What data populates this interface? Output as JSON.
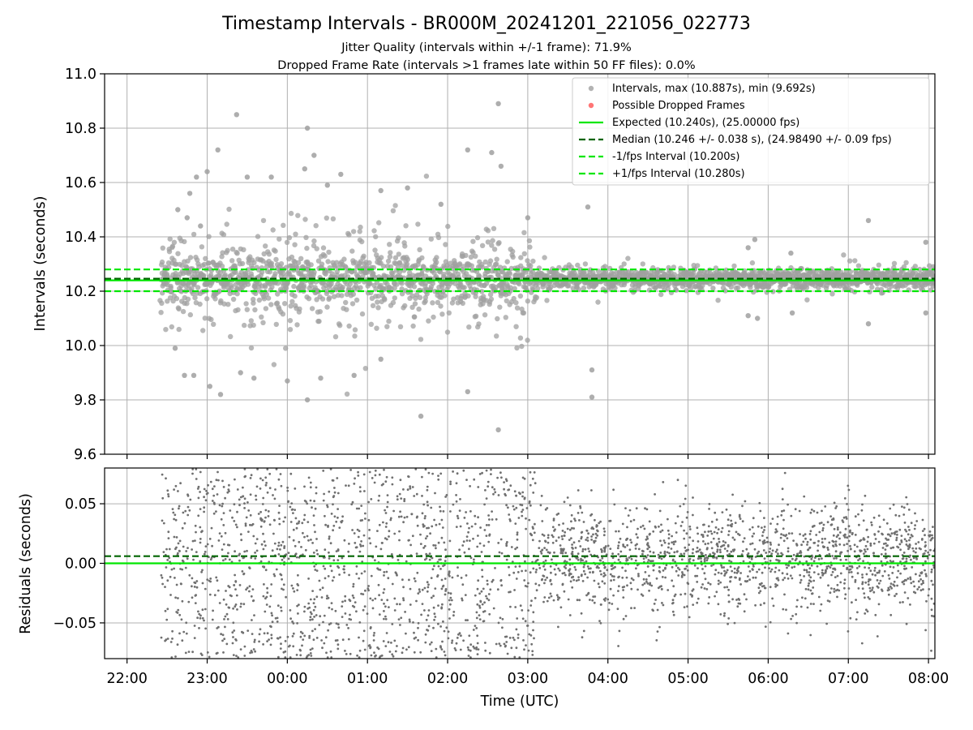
{
  "chart_data": [
    {
      "type": "scatter",
      "title": "Timestamp Intervals - BR000M_20241201_221056_022773",
      "subtitle_lines": [
        "Jitter Quality (intervals within +/-1 frame): 71.9%",
        "Dropped Frame Rate (intervals >1 frames late within 50 FF files): 0.0%"
      ],
      "xlabel": "",
      "ylabel": "Intervals (seconds)",
      "ylim": [
        9.6,
        11.0
      ],
      "yticks": [
        9.6,
        9.8,
        10.0,
        10.2,
        10.4,
        10.6,
        10.8,
        11.0
      ],
      "ytick_labels": [
        "9.6",
        "9.8",
        "10.0",
        "10.2",
        "10.4",
        "10.6",
        "10.8",
        "11.0"
      ],
      "xlim_hours": [
        21.72,
        32.08
      ],
      "grid": true,
      "legend_position": "top-right",
      "legend": [
        {
          "label": "Intervals, max (10.887s), min (9.692s)",
          "kind": "dot",
          "color": "#a0a0a0"
        },
        {
          "label": "Possible Dropped Frames",
          "kind": "dot",
          "color": "#ff6666"
        },
        {
          "label": "Expected (10.240s), (25.00000 fps)",
          "kind": "line",
          "color": "#00e600"
        },
        {
          "label": "Median (10.246 +/- 0.038 s), (24.98490 +/- 0.09 fps)",
          "kind": "dashed",
          "color": "#006400"
        },
        {
          "label": "-1/fps Interval (10.200s)",
          "kind": "dashed",
          "color": "#00e600"
        },
        {
          "label": "+1/fps Interval (10.280s)",
          "kind": "dashed",
          "color": "#00e600"
        }
      ],
      "reference_lines": [
        {
          "name": "Expected",
          "y": 10.24,
          "style": "solid",
          "color": "#00e600"
        },
        {
          "name": "Median",
          "y": 10.246,
          "style": "dashed",
          "color": "#006400"
        },
        {
          "name": "-1/fps Interval",
          "y": 10.2,
          "style": "dashed",
          "color": "#00e600"
        },
        {
          "name": "+1/fps Interval",
          "y": 10.28,
          "style": "dashed",
          "color": "#00e600"
        }
      ],
      "series": [
        {
          "name": "Intervals",
          "color": "#a0a0a0",
          "x_start": "22:25",
          "x_end": "08:05",
          "max": 10.887,
          "min": 9.692,
          "median": 10.246,
          "std": 0.038,
          "points": [
            {
              "x": "22:38",
              "y": 10.5
            },
            {
              "x": "22:45",
              "y": 10.47
            },
            {
              "x": "22:47",
              "y": 10.56
            },
            {
              "x": "22:52",
              "y": 10.62
            },
            {
              "x": "22:55",
              "y": 10.44
            },
            {
              "x": "23:00",
              "y": 10.64
            },
            {
              "x": "23:08",
              "y": 10.72
            },
            {
              "x": "23:22",
              "y": 10.85
            },
            {
              "x": "23:30",
              "y": 10.62
            },
            {
              "x": "23:48",
              "y": 10.62
            },
            {
              "x": "00:13",
              "y": 10.65
            },
            {
              "x": "00:15",
              "y": 10.8
            },
            {
              "x": "00:20",
              "y": 10.7
            },
            {
              "x": "00:30",
              "y": 10.59
            },
            {
              "x": "00:40",
              "y": 10.63
            },
            {
              "x": "01:10",
              "y": 10.57
            },
            {
              "x": "01:30",
              "y": 10.58
            },
            {
              "x": "01:55",
              "y": 10.52
            },
            {
              "x": "02:15",
              "y": 10.72
            },
            {
              "x": "02:33",
              "y": 10.71
            },
            {
              "x": "02:38",
              "y": 10.89
            },
            {
              "x": "02:40",
              "y": 10.66
            },
            {
              "x": "03:00",
              "y": 10.47
            },
            {
              "x": "03:45",
              "y": 10.51
            },
            {
              "x": "05:50",
              "y": 10.39
            },
            {
              "x": "05:45",
              "y": 10.36
            },
            {
              "x": "06:17",
              "y": 10.34
            },
            {
              "x": "07:15",
              "y": 10.46
            },
            {
              "x": "07:58",
              "y": 10.38
            },
            {
              "x": "22:36",
              "y": 9.99
            },
            {
              "x": "22:43",
              "y": 9.89
            },
            {
              "x": "22:50",
              "y": 9.89
            },
            {
              "x": "23:02",
              "y": 9.85
            },
            {
              "x": "23:10",
              "y": 9.82
            },
            {
              "x": "23:25",
              "y": 9.9
            },
            {
              "x": "23:35",
              "y": 9.88
            },
            {
              "x": "00:00",
              "y": 9.87
            },
            {
              "x": "00:15",
              "y": 9.8
            },
            {
              "x": "00:25",
              "y": 9.88
            },
            {
              "x": "00:50",
              "y": 9.89
            },
            {
              "x": "01:10",
              "y": 9.95
            },
            {
              "x": "01:40",
              "y": 9.74
            },
            {
              "x": "02:15",
              "y": 9.83
            },
            {
              "x": "02:38",
              "y": 9.69
            },
            {
              "x": "03:48",
              "y": 9.91
            },
            {
              "x": "03:48",
              "y": 9.81
            },
            {
              "x": "05:45",
              "y": 10.11
            },
            {
              "x": "05:52",
              "y": 10.1
            },
            {
              "x": "06:18",
              "y": 10.12
            },
            {
              "x": "07:15",
              "y": 10.08
            },
            {
              "x": "07:58",
              "y": 10.12
            }
          ]
        },
        {
          "name": "Possible Dropped Frames",
          "color": "#ff6666",
          "points": []
        }
      ]
    },
    {
      "type": "scatter",
      "title": "",
      "xlabel": "Time (UTC)",
      "ylabel": "Residuals (seconds)",
      "ylim": [
        -0.08,
        0.08
      ],
      "yticks": [
        -0.05,
        0.0,
        0.05
      ],
      "ytick_labels": [
        "−0.05",
        "0.00",
        "0.05"
      ],
      "xlim_hours": [
        21.72,
        32.08
      ],
      "xticks_hours": [
        22,
        23,
        24,
        25,
        26,
        27,
        28,
        29,
        30,
        31,
        32
      ],
      "xtick_labels": [
        "22:00",
        "23:00",
        "00:00",
        "01:00",
        "02:00",
        "03:00",
        "04:00",
        "05:00",
        "06:00",
        "07:00",
        "08:00"
      ],
      "grid": true,
      "reference_lines": [
        {
          "name": "Expected",
          "y": 0.0,
          "style": "solid",
          "color": "#00e600"
        },
        {
          "name": "Median",
          "y": 0.006,
          "style": "dashed",
          "color": "#006400"
        }
      ],
      "series": [
        {
          "name": "Residuals",
          "color": "#707070",
          "x_start": "22:25",
          "x_end": "08:05",
          "spread_early": 0.08,
          "spread_late": 0.045
        }
      ]
    }
  ]
}
